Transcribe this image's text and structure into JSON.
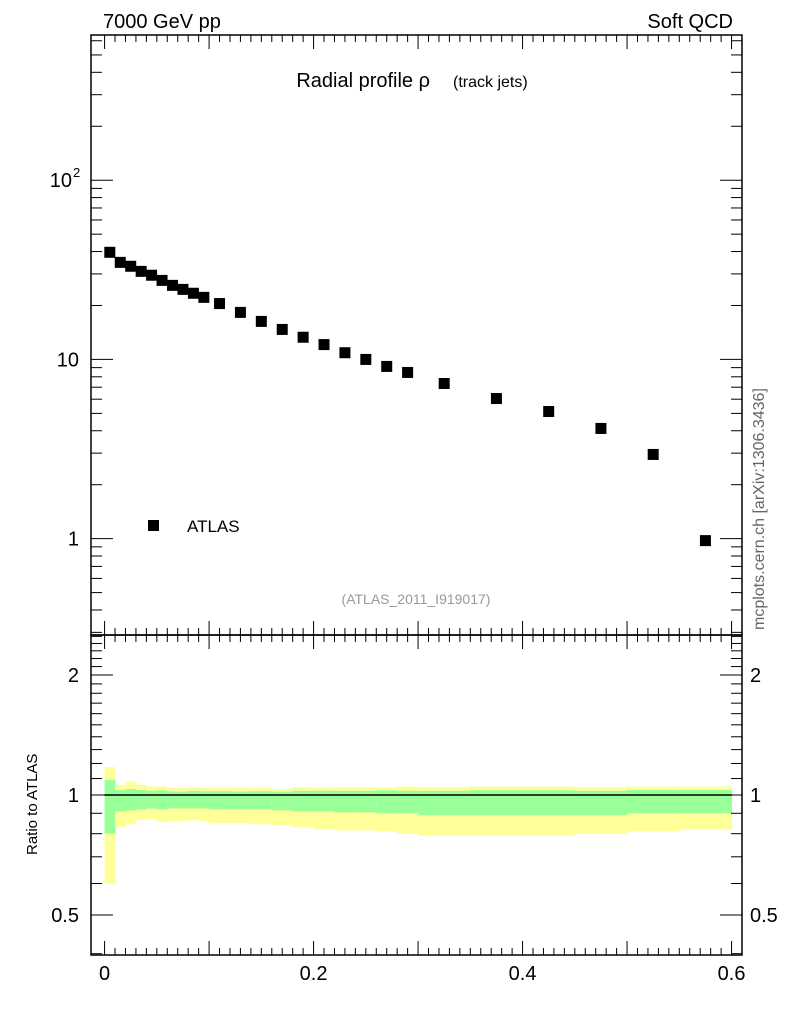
{
  "header": {
    "energy": "7000 GeV pp",
    "category": "Soft QCD"
  },
  "side_label": "mcplots.cern.ch [arXiv:1306.3436]",
  "analysis_id": "(ATLAS_2011_I919017)",
  "chart_data": [
    {
      "type": "scatter",
      "title_main": "Radial profile ρ",
      "title_sub": "(track jets)",
      "xlabel": "",
      "ylabel": "",
      "yscale": "log",
      "xlim": [
        -0.013,
        0.61
      ],
      "ylim": [
        0.29,
        646
      ],
      "ytick_labels": [
        {
          "value": 100,
          "base": "10",
          "exp": "2"
        },
        {
          "value": 10,
          "base": "10",
          "exp": ""
        },
        {
          "value": 1,
          "base": "1",
          "exp": ""
        }
      ],
      "legend": [
        {
          "name": "ATLAS",
          "marker": "square",
          "color": "#000000"
        }
      ],
      "legend_position": "bottom-left",
      "series": [
        {
          "name": "ATLAS",
          "x": [
            0.005,
            0.015,
            0.025,
            0.035,
            0.045,
            0.055,
            0.065,
            0.075,
            0.085,
            0.095,
            0.11,
            0.13,
            0.15,
            0.17,
            0.19,
            0.21,
            0.23,
            0.25,
            0.27,
            0.29,
            0.325,
            0.375,
            0.425,
            0.475,
            0.525,
            0.575
          ],
          "y": [
            39.6,
            34.8,
            33.1,
            31.0,
            29.5,
            27.6,
            25.9,
            24.6,
            23.4,
            22.2,
            20.5,
            18.3,
            16.3,
            14.7,
            13.3,
            12.1,
            10.9,
            10.0,
            9.14,
            8.46,
            7.34,
            6.05,
            5.12,
            4.12,
            2.95,
            0.975
          ]
        }
      ]
    },
    {
      "type": "area",
      "ylabel": "Ratio to ATLAS",
      "yscale": "log",
      "ylim": [
        0.397,
        2.52
      ],
      "xlim": [
        -0.013,
        0.61
      ],
      "ytick_labels": [
        "2",
        "1",
        "0.5"
      ],
      "ytick_values": [
        2,
        1,
        0.5
      ],
      "xtick_labels": [
        "0",
        "0.2",
        "0.4",
        "0.6"
      ],
      "xtick_values": [
        0,
        0.2,
        0.4,
        0.6
      ],
      "bin_edges": [
        0,
        0.01,
        0.02,
        0.03,
        0.04,
        0.05,
        0.06,
        0.07,
        0.08,
        0.09,
        0.1,
        0.12,
        0.14,
        0.16,
        0.18,
        0.2,
        0.22,
        0.24,
        0.26,
        0.28,
        0.3,
        0.35,
        0.4,
        0.45,
        0.5,
        0.55,
        0.6
      ],
      "bands": {
        "yellow_color": "#ffff99",
        "green_color": "#99ff99",
        "yellow_upper": [
          1.175,
          1.06,
          1.08,
          1.06,
          1.05,
          1.05,
          1.04,
          1.04,
          1.045,
          1.04,
          1.04,
          1.04,
          1.04,
          1.035,
          1.045,
          1.04,
          1.045,
          1.045,
          1.045,
          1.05,
          1.045,
          1.05,
          1.05,
          1.045,
          1.05,
          1.05
        ],
        "green_upper": [
          1.09,
          1.03,
          1.035,
          1.03,
          1.025,
          1.028,
          1.02,
          1.02,
          1.025,
          1.022,
          1.022,
          1.02,
          1.022,
          1.02,
          1.025,
          1.025,
          1.025,
          1.025,
          1.028,
          1.025,
          1.025,
          1.028,
          1.028,
          1.025,
          1.03,
          1.03
        ],
        "green_lower": [
          0.8,
          0.91,
          0.915,
          0.92,
          0.925,
          0.92,
          0.925,
          0.925,
          0.925,
          0.925,
          0.92,
          0.92,
          0.92,
          0.915,
          0.91,
          0.91,
          0.905,
          0.905,
          0.9,
          0.9,
          0.89,
          0.89,
          0.89,
          0.89,
          0.9,
          0.9
        ],
        "yellow_lower": [
          0.6,
          0.83,
          0.845,
          0.865,
          0.87,
          0.855,
          0.86,
          0.86,
          0.865,
          0.86,
          0.85,
          0.85,
          0.845,
          0.84,
          0.83,
          0.82,
          0.815,
          0.815,
          0.81,
          0.8,
          0.79,
          0.79,
          0.79,
          0.8,
          0.81,
          0.82
        ]
      }
    }
  ]
}
